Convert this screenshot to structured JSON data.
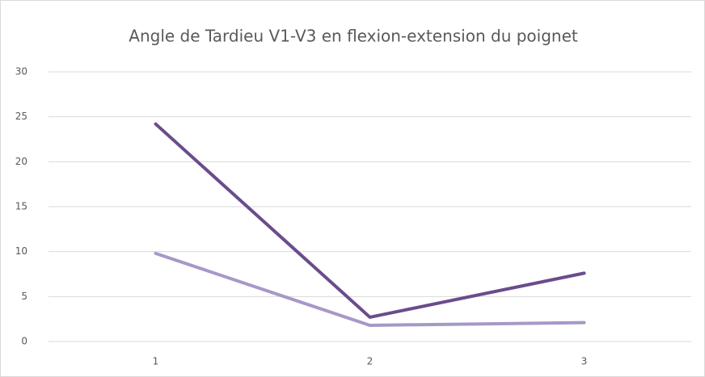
{
  "chart_data": {
    "type": "line",
    "title": "Angle de Tardieu V1-V3 en flexion-extension du poignet",
    "categories": [
      "1",
      "2",
      "3"
    ],
    "series": [
      {
        "color": "#6a4c8c",
        "values": [
          24.2,
          2.7,
          7.6
        ]
      },
      {
        "color": "#a698c8",
        "values": [
          9.8,
          1.8,
          2.1
        ]
      }
    ],
    "ylim": [
      0,
      30
    ],
    "yticks": [
      0,
      5,
      10,
      15,
      20,
      25,
      30
    ],
    "grid": true
  }
}
